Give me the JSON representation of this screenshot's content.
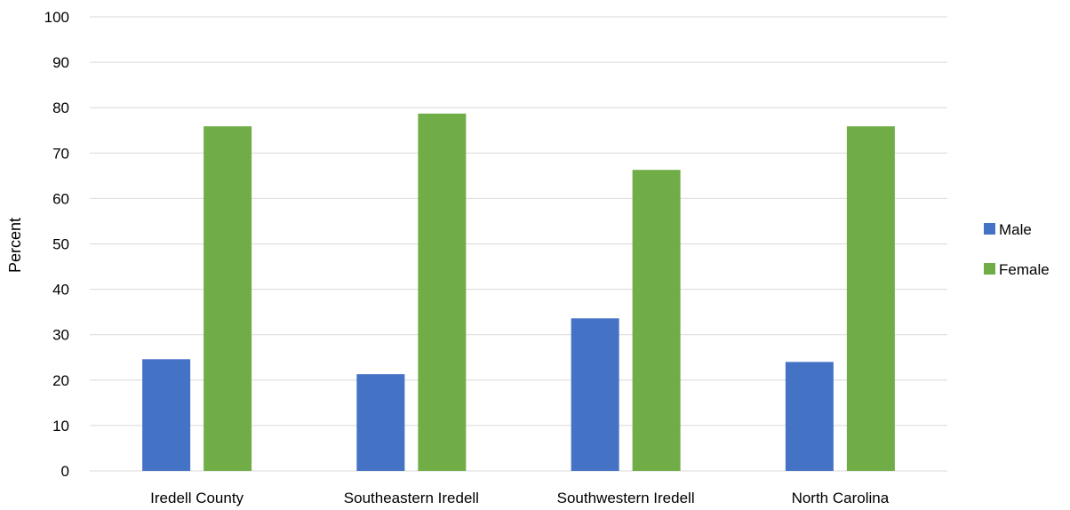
{
  "chart_data": {
    "type": "bar",
    "title": "",
    "xlabel": "",
    "ylabel": "Percent",
    "ylim": [
      0,
      100
    ],
    "yticks": [
      0,
      10,
      20,
      30,
      40,
      50,
      60,
      70,
      80,
      90,
      100
    ],
    "grid": true,
    "legend_position": "right",
    "categories": [
      "Iredell County",
      "Southeastern Iredell",
      "Southwestern Iredell",
      "North Carolina"
    ],
    "series": [
      {
        "name": "Male",
        "color": "#4472c4",
        "values": [
          24.6,
          21.3,
          33.6,
          24.0
        ]
      },
      {
        "name": "Female",
        "color": "#70ad47",
        "values": [
          75.9,
          78.7,
          66.3,
          75.9
        ]
      }
    ]
  }
}
